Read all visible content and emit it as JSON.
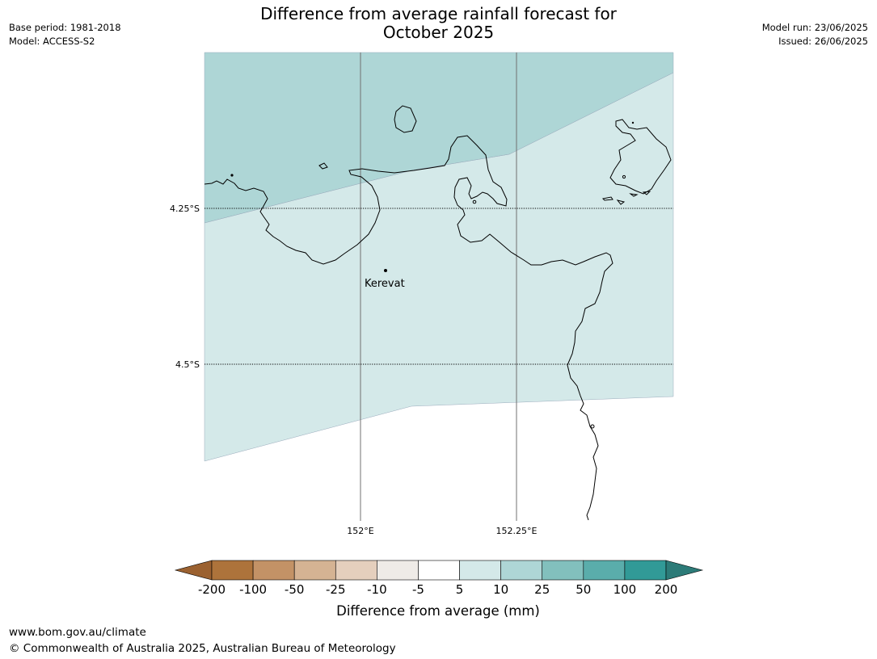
{
  "header": {
    "title_line1": "Difference from average rainfall forecast for",
    "title_line2": "October 2025",
    "base_period": "Base period: 1981-2018",
    "model": "Model: ACCESS-S2",
    "model_run": "Model run: 23/06/2025",
    "issued": "Issued: 26/06/2025"
  },
  "map": {
    "lat_labels": [
      "4.25°S",
      "4.5°S"
    ],
    "lon_labels": [
      "152°E",
      "152.25°E"
    ],
    "place": "Kerevat",
    "zone_colors": {
      "band_10_25": "#aed6d6",
      "band_5_10": "#d4e9e9",
      "land_outline": "#000000"
    }
  },
  "legend": {
    "title": "Difference from average (mm)",
    "ticks": [
      "-200",
      "-100",
      "-50",
      "-25",
      "-10",
      "-5",
      "5",
      "10",
      "25",
      "50",
      "100",
      "200"
    ],
    "colors": [
      "#9b6130",
      "#ad733b",
      "#c39266",
      "#d5b393",
      "#e5cfbd",
      "#efebe7",
      "#ffffff",
      "#d4e9e9",
      "#aed6d6",
      "#82c0bd",
      "#5aadab",
      "#319a97",
      "#2c7b78"
    ]
  },
  "footer": {
    "url": "www.bom.gov.au/climate",
    "copyright": "© Commonwealth of Australia 2025, Australian Bureau of Meteorology"
  }
}
